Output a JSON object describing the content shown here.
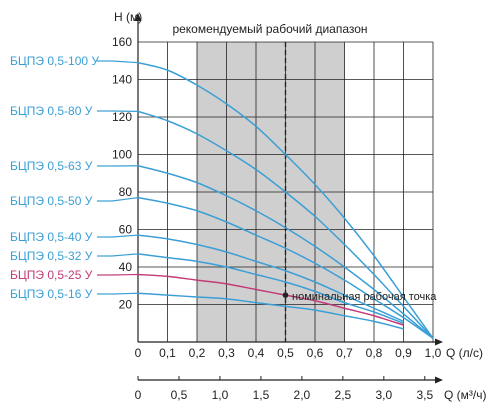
{
  "chart_data": {
    "type": "line",
    "title": "рекомендуемый рабочий диапазон",
    "ylabel": "H (м)",
    "xlabel": "Q (л/с)",
    "x2label": "Q (м³/ч)",
    "x_ticks": [
      "0",
      "0,1",
      "0,2",
      "0,3",
      "0,4",
      "0,5",
      "0,6",
      "0,7",
      "0,8",
      "0,9",
      "1,0"
    ],
    "x2_ticks": [
      "0",
      "0,5",
      "1,0",
      "1,5",
      "2,0",
      "2,5",
      "3,0",
      "3,5"
    ],
    "y_ticks": [
      "20",
      "40",
      "60",
      "80",
      "100",
      "120",
      "140",
      "160"
    ],
    "xlim": [
      0,
      1.0
    ],
    "ylim": [
      0,
      160
    ],
    "x2lim": [
      0,
      3.6
    ],
    "recommended_range": [
      0.2,
      0.7
    ],
    "nominal_point": {
      "x": 0.5,
      "label": "номинальная рабочая точка"
    },
    "grid": true,
    "series": [
      {
        "name": "БЦПЭ 0,5-100 У",
        "color": "#3a9fd6",
        "x": [
          0,
          0.1,
          0.2,
          0.3,
          0.4,
          0.5,
          0.6,
          0.7,
          0.8,
          0.9,
          1.0
        ],
        "values": [
          149,
          145,
          137,
          127,
          115,
          100,
          84,
          66,
          46,
          24,
          2
        ]
      },
      {
        "name": "БЦПЭ 0,5-80 У",
        "color": "#3a9fd6",
        "x": [
          0,
          0.1,
          0.2,
          0.3,
          0.4,
          0.5,
          0.6,
          0.7,
          0.8,
          0.9,
          1.0
        ],
        "values": [
          123,
          118,
          111,
          102,
          92,
          80,
          67,
          52,
          36,
          19,
          2
        ]
      },
      {
        "name": "БЦПЭ 0,5-63 У",
        "color": "#3a9fd6",
        "x": [
          0,
          0.1,
          0.2,
          0.3,
          0.4,
          0.5,
          0.6,
          0.7,
          0.8,
          0.9,
          1.0
        ],
        "values": [
          94,
          90,
          85,
          78,
          70,
          61,
          51,
          40,
          28,
          15,
          2
        ]
      },
      {
        "name": "БЦПЭ 0,5-50 У",
        "color": "#3a9fd6",
        "x": [
          0,
          0.1,
          0.2,
          0.3,
          0.4,
          0.5,
          0.6,
          0.7,
          0.8,
          0.9,
          1.0
        ],
        "values": [
          77,
          74,
          70,
          64,
          57,
          50,
          42,
          33,
          23,
          13,
          2
        ]
      },
      {
        "name": "БЦПЭ 0,5-40 У",
        "color": "#3a9fd6",
        "x": [
          0,
          0.1,
          0.2,
          0.3,
          0.4,
          0.5,
          0.6,
          0.7,
          0.8,
          0.9
        ],
        "values": [
          57,
          55,
          52,
          48,
          43,
          38,
          32,
          25,
          18,
          11
        ]
      },
      {
        "name": "БЦПЭ 0,5-32 У",
        "color": "#3a9fd6",
        "x": [
          0,
          0.1,
          0.2,
          0.3,
          0.4,
          0.5,
          0.6,
          0.7,
          0.8,
          0.9
        ],
        "values": [
          47,
          45,
          43,
          40,
          36,
          32,
          27,
          21,
          16,
          10
        ]
      },
      {
        "name": "БЦПЭ 0,5-25 У",
        "color": "#c23b78",
        "x": [
          0,
          0.1,
          0.2,
          0.3,
          0.4,
          0.5,
          0.6,
          0.7,
          0.8,
          0.9
        ],
        "values": [
          36,
          35,
          33,
          31,
          28,
          25,
          22,
          18,
          14,
          9
        ]
      },
      {
        "name": "БЦПЭ 0,5-16 У",
        "color": "#3a9fd6",
        "x": [
          0,
          0.1,
          0.2,
          0.3,
          0.4,
          0.5,
          0.6,
          0.7,
          0.8,
          0.9
        ],
        "values": [
          26,
          25,
          24,
          23,
          21,
          19,
          17,
          14,
          11,
          7
        ]
      }
    ]
  }
}
